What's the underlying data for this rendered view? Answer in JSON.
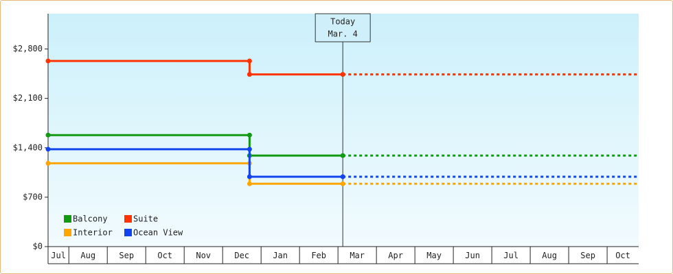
{
  "chart_data": {
    "type": "step-line",
    "categories": [
      "Jul",
      "Aug",
      "Sep",
      "Oct",
      "Nov",
      "Dec",
      "Jan",
      "Feb",
      "Mar",
      "Apr",
      "May",
      "Jun",
      "Jul",
      "Aug",
      "Sep",
      "Oct"
    ],
    "xlim": [
      0.46,
      15.82
    ],
    "ylim": [
      0,
      3300
    ],
    "yticks": [
      {
        "value": 0,
        "label": "$0"
      },
      {
        "value": 700,
        "label": "$700"
      },
      {
        "value": 1400,
        "label": "$1,400"
      },
      {
        "value": 2100,
        "label": "$2,100"
      },
      {
        "value": 2800,
        "label": "$2,800"
      }
    ],
    "today": {
      "x": 8.125,
      "label": [
        "Today",
        "Mar. 4"
      ]
    },
    "series": [
      {
        "name": "Balcony",
        "color": "#119911",
        "x": [
          0.46,
          5.7,
          5.7,
          8.125
        ],
        "values": [
          1580,
          1580,
          1290,
          1290
        ]
      },
      {
        "name": "Suite",
        "color": "#ff3300",
        "x": [
          0.46,
          5.7,
          5.7,
          8.125
        ],
        "values": [
          2630,
          2630,
          2440,
          2440
        ]
      },
      {
        "name": "Interior",
        "color": "#ffa500",
        "x": [
          0.46,
          5.7,
          5.7,
          8.125
        ],
        "values": [
          1180,
          1180,
          890,
          890
        ]
      },
      {
        "name": "Ocean View",
        "color": "#1144ee",
        "x": [
          0.46,
          5.7,
          5.7,
          8.125
        ],
        "values": [
          1380,
          1380,
          990,
          990
        ]
      }
    ]
  }
}
